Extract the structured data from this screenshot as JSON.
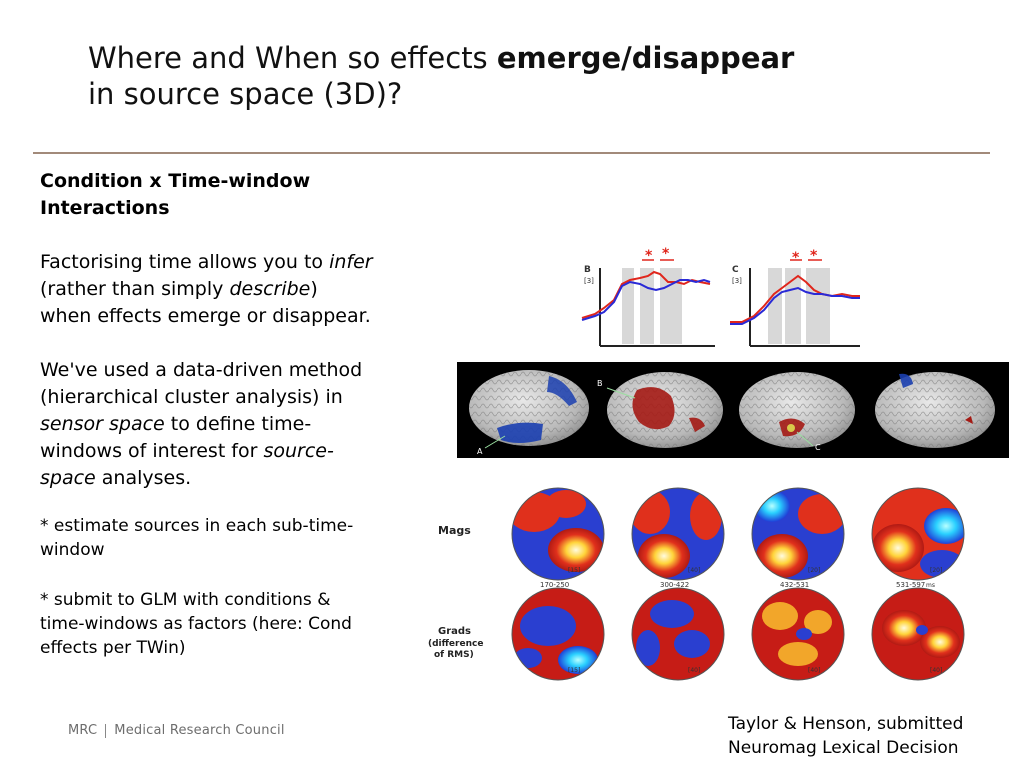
{
  "title": {
    "prefix": "Where and When so effects ",
    "bold": "emerge/disappear",
    "line2": "in source space (3D)?"
  },
  "body": {
    "heading_line1": "Condition x Time-window",
    "heading_line2": "Interactions",
    "p1_a": "Factorising time allows you to ",
    "p1_infer": "infer",
    "p1_b": " (rather than simply ",
    "p1_describe": "describe",
    "p1_c": ") when effects emerge or disappear.",
    "p2_a": "We've used a data-driven method (hierarchical cluster analysis) in ",
    "p2_sensor": "sensor space",
    "p2_b": " to define time-windows of interest for ",
    "p2_source": "source-space",
    "p2_c": " analyses.",
    "bullet1": "* estimate sources in each sub-time-window",
    "bullet2": "* submit to GLM with conditions & time-windows as factors (here: Cond effects per TWin)"
  },
  "logo": {
    "mrc": "MRC",
    "name": "Medical Research Council"
  },
  "credit": {
    "line1": "Taylor & Henson, submitted",
    "line2": "Neuromag Lexical Decision"
  },
  "figure": {
    "plot_b_label": "B",
    "plot_c_label": "C",
    "plot_unit": "[3]",
    "star": "*",
    "brain_label_a": "A",
    "brain_label_b": "B",
    "brain_label_c": "C",
    "row_mags": "Mags",
    "row_grads_1": "Grads",
    "row_grads_2": "(difference",
    "row_grads_3": "of RMS)",
    "windows": [
      "170-250",
      "300-422",
      "432-531",
      "531-597"
    ],
    "window_unit": "ms",
    "mag_counts": [
      "[15]",
      "[40]",
      "[20]",
      "[20]"
    ],
    "grad_counts": [
      "[15]",
      "[40]",
      "[40]",
      "[40]"
    ],
    "colors": {
      "line_red": "#e0261c",
      "line_blue": "#2a2ad6",
      "shade": "#d8d8d8",
      "rule": "#a28a7a"
    }
  }
}
